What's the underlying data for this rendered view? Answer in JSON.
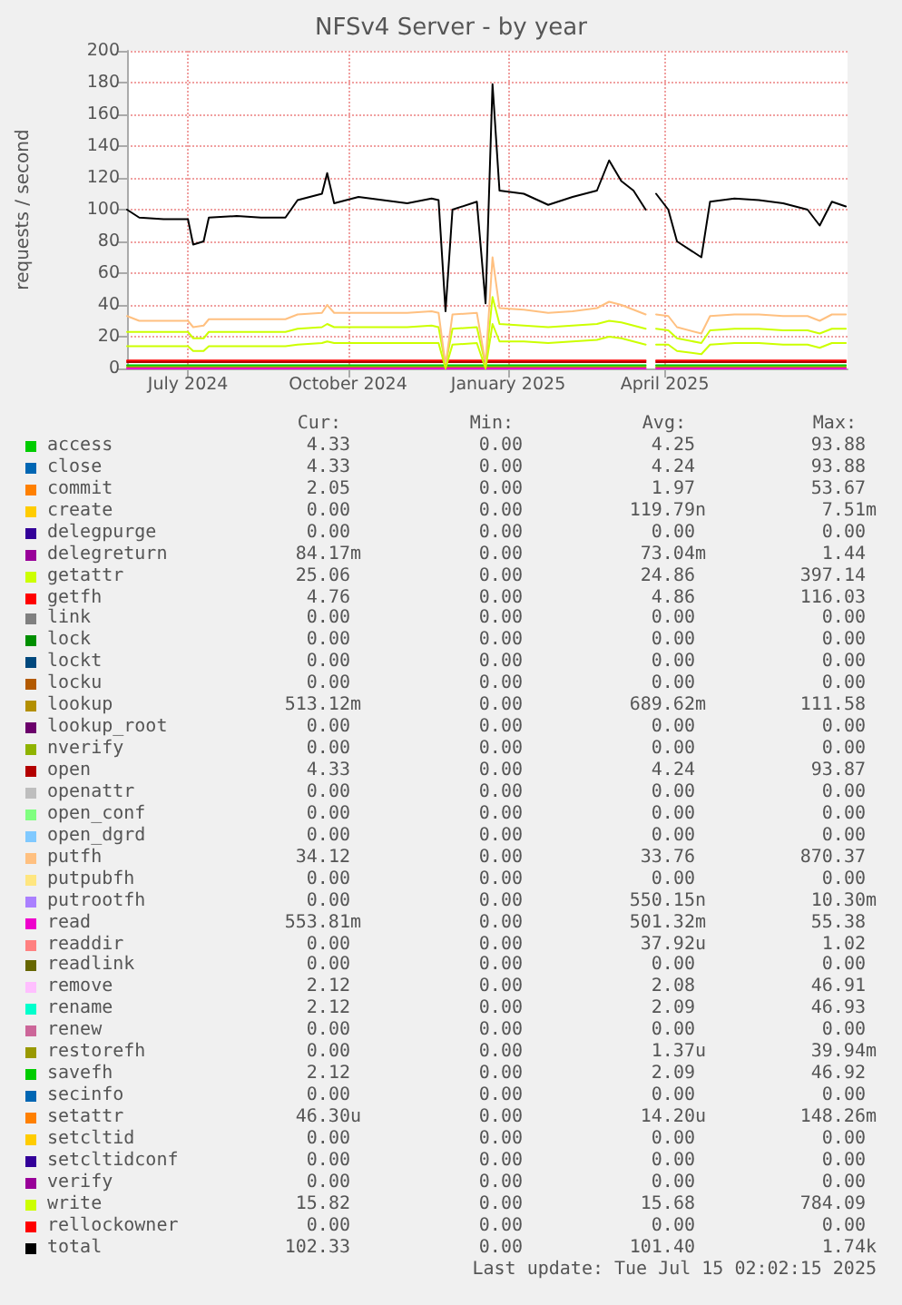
{
  "chart_data": {
    "type": "line",
    "title": "NFSv4 Server - by year",
    "ylabel": "requests / second",
    "x": [
      "2024-05-27",
      "2024-06-03",
      "2024-06-17",
      "2024-07-01",
      "2024-07-04",
      "2024-07-10",
      "2024-07-13",
      "2024-07-29",
      "2024-08-12",
      "2024-08-26",
      "2024-09-02",
      "2024-09-16",
      "2024-09-19",
      "2024-09-23",
      "2024-10-07",
      "2024-10-21",
      "2024-11-04",
      "2024-11-18",
      "2024-11-22",
      "2024-11-26",
      "2024-11-30",
      "2024-12-14",
      "2024-12-19",
      "2024-12-23",
      "2024-12-27",
      "2025-01-10",
      "2025-01-24",
      "2025-02-07",
      "2025-02-21",
      "2025-02-28",
      "2025-03-07",
      "2025-03-14",
      "2025-03-21",
      "2025-03-24",
      "2025-03-27",
      "2025-04-03",
      "2025-04-08",
      "2025-04-22",
      "2025-04-27",
      "2025-05-11",
      "2025-05-25",
      "2025-06-08",
      "2025-06-22",
      "2025-06-29",
      "2025-07-06",
      "2025-07-14"
    ],
    "series": [
      {
        "name": "access",
        "color": "#00cc00",
        "values": [
          null,
          null,
          null,
          null,
          null,
          null,
          null,
          null,
          null,
          null,
          null,
          null,
          null,
          null,
          null,
          null,
          null,
          null,
          null,
          null,
          null,
          null,
          null,
          null,
          null,
          null,
          null,
          null,
          null,
          null,
          null,
          null,
          null,
          null,
          null,
          null,
          null,
          null,
          null,
          null,
          null,
          null,
          null,
          null,
          null,
          null
        ]
      },
      {
        "name": "close",
        "color": "#0066b3",
        "values": [
          null,
          null,
          null,
          null,
          null,
          null,
          null,
          null,
          null,
          null,
          null,
          null,
          null,
          null,
          null,
          null,
          null,
          null,
          null,
          null,
          null,
          null,
          null,
          null,
          null,
          null,
          null,
          null,
          null,
          null,
          null,
          null,
          null,
          null,
          null,
          null,
          null,
          null,
          null,
          null,
          null,
          null,
          null,
          null,
          null,
          null
        ]
      },
      {
        "name": "commit",
        "color": "#ff8000",
        "values": [
          null,
          null,
          null,
          null,
          null,
          null,
          null,
          null,
          null,
          null,
          null,
          null,
          null,
          null,
          null,
          null,
          null,
          null,
          null,
          null,
          null,
          null,
          null,
          null,
          null,
          null,
          null,
          null,
          null,
          null,
          null,
          null,
          null,
          null,
          null,
          null,
          null,
          null,
          null,
          null,
          null,
          null,
          null,
          null,
          null,
          null
        ]
      },
      {
        "name": "create",
        "color": "#ffcc00",
        "values": [
          null,
          null,
          null,
          null,
          null,
          null,
          null,
          null,
          null,
          null,
          null,
          null,
          null,
          null,
          null,
          null,
          null,
          null,
          null,
          null,
          null,
          null,
          null,
          null,
          null,
          null,
          null,
          null,
          null,
          null,
          null,
          null,
          null,
          null,
          null,
          null,
          null,
          null,
          null,
          null,
          null,
          null,
          null,
          null,
          null,
          null
        ]
      },
      {
        "name": "delegpurge",
        "color": "#330099",
        "values": [
          null,
          null,
          null,
          null,
          null,
          null,
          null,
          null,
          null,
          null,
          null,
          null,
          null,
          null,
          null,
          null,
          null,
          null,
          null,
          null,
          null,
          null,
          null,
          null,
          null,
          null,
          null,
          null,
          null,
          null,
          null,
          null,
          null,
          null,
          null,
          null,
          null,
          null,
          null,
          null,
          null,
          null,
          null,
          null,
          null,
          null
        ]
      },
      {
        "name": "delegreturn",
        "color": "#990099",
        "values": [
          null,
          null,
          null,
          null,
          null,
          null,
          null,
          null,
          null,
          null,
          null,
          null,
          null,
          null,
          null,
          null,
          null,
          null,
          null,
          null,
          null,
          null,
          null,
          null,
          null,
          null,
          null,
          null,
          null,
          null,
          null,
          null,
          null,
          null,
          null,
          null,
          null,
          null,
          null,
          null,
          null,
          null,
          null,
          null,
          null,
          null
        ]
      },
      {
        "name": "getattr",
        "color": "#ccff00",
        "values": [
          23,
          23,
          23,
          23,
          19,
          19,
          23,
          23,
          23,
          23,
          25,
          26,
          28,
          26,
          26,
          26,
          26,
          27,
          26,
          2,
          25,
          26,
          2,
          45,
          28,
          27,
          26,
          27,
          28,
          30,
          29,
          27,
          25,
          null,
          25,
          24,
          19,
          16,
          24,
          25,
          25,
          24,
          24,
          22,
          25,
          25
        ]
      },
      {
        "name": "getfh",
        "color": "#ff0000",
        "x": [
          "2024-05-27",
          "2025-03-21",
          "2025-03-24",
          "2025-03-27",
          "2025-07-14"
        ],
        "values": [
          5,
          5,
          null,
          5,
          5
        ]
      },
      {
        "name": "link",
        "color": "#808080",
        "values": [
          null,
          null,
          null,
          null,
          null,
          null,
          null,
          null,
          null,
          null,
          null,
          null,
          null,
          null,
          null,
          null,
          null,
          null,
          null,
          null,
          null,
          null,
          null,
          null,
          null,
          null,
          null,
          null,
          null,
          null,
          null,
          null,
          null,
          null,
          null,
          null,
          null,
          null,
          null,
          null,
          null,
          null,
          null,
          null,
          null,
          null
        ]
      },
      {
        "name": "lock",
        "color": "#008f00",
        "values": [
          null,
          null,
          null,
          null,
          null,
          null,
          null,
          null,
          null,
          null,
          null,
          null,
          null,
          null,
          null,
          null,
          null,
          null,
          null,
          null,
          null,
          null,
          null,
          null,
          null,
          null,
          null,
          null,
          null,
          null,
          null,
          null,
          null,
          null,
          null,
          null,
          null,
          null,
          null,
          null,
          null,
          null,
          null,
          null,
          null,
          null
        ]
      },
      {
        "name": "lockt",
        "color": "#00487d",
        "values": [
          null,
          null,
          null,
          null,
          null,
          null,
          null,
          null,
          null,
          null,
          null,
          null,
          null,
          null,
          null,
          null,
          null,
          null,
          null,
          null,
          null,
          null,
          null,
          null,
          null,
          null,
          null,
          null,
          null,
          null,
          null,
          null,
          null,
          null,
          null,
          null,
          null,
          null,
          null,
          null,
          null,
          null,
          null,
          null,
          null,
          null
        ]
      },
      {
        "name": "locku",
        "color": "#b35a00",
        "values": [
          null,
          null,
          null,
          null,
          null,
          null,
          null,
          null,
          null,
          null,
          null,
          null,
          null,
          null,
          null,
          null,
          null,
          null,
          null,
          null,
          null,
          null,
          null,
          null,
          null,
          null,
          null,
          null,
          null,
          null,
          null,
          null,
          null,
          null,
          null,
          null,
          null,
          null,
          null,
          null,
          null,
          null,
          null,
          null,
          null,
          null
        ]
      },
      {
        "name": "lookup",
        "color": "#b38f00",
        "x": [
          "2024-05-27",
          "2025-03-21",
          "2025-03-24",
          "2025-03-27",
          "2025-07-14"
        ],
        "values": [
          1,
          1,
          null,
          1,
          1
        ]
      },
      {
        "name": "lookup_root",
        "color": "#6b006b",
        "values": [
          null,
          null,
          null,
          null,
          null,
          null,
          null,
          null,
          null,
          null,
          null,
          null,
          null,
          null,
          null,
          null,
          null,
          null,
          null,
          null,
          null,
          null,
          null,
          null,
          null,
          null,
          null,
          null,
          null,
          null,
          null,
          null,
          null,
          null,
          null,
          null,
          null,
          null,
          null,
          null,
          null,
          null,
          null,
          null,
          null,
          null
        ]
      },
      {
        "name": "nverify",
        "color": "#8fb300",
        "values": [
          null,
          null,
          null,
          null,
          null,
          null,
          null,
          null,
          null,
          null,
          null,
          null,
          null,
          null,
          null,
          null,
          null,
          null,
          null,
          null,
          null,
          null,
          null,
          null,
          null,
          null,
          null,
          null,
          null,
          null,
          null,
          null,
          null,
          null,
          null,
          null,
          null,
          null,
          null,
          null,
          null,
          null,
          null,
          null,
          null,
          null
        ]
      },
      {
        "name": "open",
        "color": "#b30000",
        "x": [
          "2024-05-27",
          "2025-03-21",
          "2025-03-24",
          "2025-03-27",
          "2025-07-14"
        ],
        "values": [
          4,
          4,
          null,
          4,
          4
        ]
      },
      {
        "name": "openattr",
        "color": "#bebebe",
        "values": [
          null,
          null,
          null,
          null,
          null,
          null,
          null,
          null,
          null,
          null,
          null,
          null,
          null,
          null,
          null,
          null,
          null,
          null,
          null,
          null,
          null,
          null,
          null,
          null,
          null,
          null,
          null,
          null,
          null,
          null,
          null,
          null,
          null,
          null,
          null,
          null,
          null,
          null,
          null,
          null,
          null,
          null,
          null,
          null,
          null,
          null
        ]
      },
      {
        "name": "open_conf",
        "color": "#80ff80",
        "values": [
          null,
          null,
          null,
          null,
          null,
          null,
          null,
          null,
          null,
          null,
          null,
          null,
          null,
          null,
          null,
          null,
          null,
          null,
          null,
          null,
          null,
          null,
          null,
          null,
          null,
          null,
          null,
          null,
          null,
          null,
          null,
          null,
          null,
          null,
          null,
          null,
          null,
          null,
          null,
          null,
          null,
          null,
          null,
          null,
          null,
          null
        ]
      },
      {
        "name": "open_dgrd",
        "color": "#80c9ff",
        "values": [
          null,
          null,
          null,
          null,
          null,
          null,
          null,
          null,
          null,
          null,
          null,
          null,
          null,
          null,
          null,
          null,
          null,
          null,
          null,
          null,
          null,
          null,
          null,
          null,
          null,
          null,
          null,
          null,
          null,
          null,
          null,
          null,
          null,
          null,
          null,
          null,
          null,
          null,
          null,
          null,
          null,
          null,
          null,
          null,
          null,
          null
        ]
      },
      {
        "name": "putfh",
        "color": "#ffc080",
        "values": [
          33,
          30,
          30,
          30,
          26,
          27,
          31,
          31,
          31,
          31,
          34,
          35,
          40,
          35,
          35,
          35,
          35,
          36,
          35,
          2,
          34,
          35,
          3,
          70,
          38,
          37,
          35,
          36,
          38,
          42,
          40,
          37,
          34,
          null,
          34,
          33,
          26,
          22,
          33,
          34,
          34,
          33,
          33,
          30,
          34,
          34
        ]
      },
      {
        "name": "putpubfh",
        "color": "#ffe680",
        "values": [
          null,
          null,
          null,
          null,
          null,
          null,
          null,
          null,
          null,
          null,
          null,
          null,
          null,
          null,
          null,
          null,
          null,
          null,
          null,
          null,
          null,
          null,
          null,
          null,
          null,
          null,
          null,
          null,
          null,
          null,
          null,
          null,
          null,
          null,
          null,
          null,
          null,
          null,
          null,
          null,
          null,
          null,
          null,
          null,
          null,
          null
        ]
      },
      {
        "name": "putrootfh",
        "color": "#aa80ff",
        "values": [
          null,
          null,
          null,
          null,
          null,
          null,
          null,
          null,
          null,
          null,
          null,
          null,
          null,
          null,
          null,
          null,
          null,
          null,
          null,
          null,
          null,
          null,
          null,
          null,
          null,
          null,
          null,
          null,
          null,
          null,
          null,
          null,
          null,
          null,
          null,
          null,
          null,
          null,
          null,
          null,
          null,
          null,
          null,
          null,
          null,
          null
        ]
      },
      {
        "name": "read",
        "color": "#ee00cc",
        "x": [
          "2024-05-27",
          "2025-03-21",
          "2025-03-24",
          "2025-03-27",
          "2025-07-14"
        ],
        "values": [
          0,
          0,
          null,
          0,
          0
        ]
      },
      {
        "name": "readdir",
        "color": "#ff8080",
        "values": [
          null,
          null,
          null,
          null,
          null,
          null,
          null,
          null,
          null,
          null,
          null,
          null,
          null,
          null,
          null,
          null,
          null,
          null,
          null,
          null,
          null,
          null,
          null,
          null,
          null,
          null,
          null,
          null,
          null,
          null,
          null,
          null,
          null,
          null,
          null,
          null,
          null,
          null,
          null,
          null,
          null,
          null,
          null,
          null,
          null,
          null
        ]
      },
      {
        "name": "readlink",
        "color": "#666600",
        "values": [
          null,
          null,
          null,
          null,
          null,
          null,
          null,
          null,
          null,
          null,
          null,
          null,
          null,
          null,
          null,
          null,
          null,
          null,
          null,
          null,
          null,
          null,
          null,
          null,
          null,
          null,
          null,
          null,
          null,
          null,
          null,
          null,
          null,
          null,
          null,
          null,
          null,
          null,
          null,
          null,
          null,
          null,
          null,
          null,
          null,
          null
        ]
      },
      {
        "name": "remove",
        "color": "#ffbfff",
        "values": [
          null,
          null,
          null,
          null,
          null,
          null,
          null,
          null,
          null,
          null,
          null,
          null,
          null,
          null,
          null,
          null,
          null,
          null,
          null,
          null,
          null,
          null,
          null,
          null,
          null,
          null,
          null,
          null,
          null,
          null,
          null,
          null,
          null,
          null,
          null,
          null,
          null,
          null,
          null,
          null,
          null,
          null,
          null,
          null,
          null,
          null
        ]
      },
      {
        "name": "rename",
        "color": "#00ffcc",
        "values": [
          null,
          null,
          null,
          null,
          null,
          null,
          null,
          null,
          null,
          null,
          null,
          null,
          null,
          null,
          null,
          null,
          null,
          null,
          null,
          null,
          null,
          null,
          null,
          null,
          null,
          null,
          null,
          null,
          null,
          null,
          null,
          null,
          null,
          null,
          null,
          null,
          null,
          null,
          null,
          null,
          null,
          null,
          null,
          null,
          null,
          null
        ]
      },
      {
        "name": "renew",
        "color": "#cc6699",
        "values": [
          null,
          null,
          null,
          null,
          null,
          null,
          null,
          null,
          null,
          null,
          null,
          null,
          null,
          null,
          null,
          null,
          null,
          null,
          null,
          null,
          null,
          null,
          null,
          null,
          null,
          null,
          null,
          null,
          null,
          null,
          null,
          null,
          null,
          null,
          null,
          null,
          null,
          null,
          null,
          null,
          null,
          null,
          null,
          null,
          null,
          null
        ]
      },
      {
        "name": "restorefh",
        "color": "#999900",
        "values": [
          null,
          null,
          null,
          null,
          null,
          null,
          null,
          null,
          null,
          null,
          null,
          null,
          null,
          null,
          null,
          null,
          null,
          null,
          null,
          null,
          null,
          null,
          null,
          null,
          null,
          null,
          null,
          null,
          null,
          null,
          null,
          null,
          null,
          null,
          null,
          null,
          null,
          null,
          null,
          null,
          null,
          null,
          null,
          null,
          null,
          null
        ]
      },
      {
        "name": "savefh",
        "color": "#00cc00",
        "x": [
          "2024-05-27",
          "2025-03-21",
          "2025-03-24",
          "2025-03-27",
          "2025-07-14"
        ],
        "values": [
          2,
          2,
          null,
          2,
          2
        ]
      },
      {
        "name": "secinfo",
        "color": "#0066b3",
        "values": [
          null,
          null,
          null,
          null,
          null,
          null,
          null,
          null,
          null,
          null,
          null,
          null,
          null,
          null,
          null,
          null,
          null,
          null,
          null,
          null,
          null,
          null,
          null,
          null,
          null,
          null,
          null,
          null,
          null,
          null,
          null,
          null,
          null,
          null,
          null,
          null,
          null,
          null,
          null,
          null,
          null,
          null,
          null,
          null,
          null,
          null
        ]
      },
      {
        "name": "setattr",
        "color": "#ff8000",
        "values": [
          null,
          null,
          null,
          null,
          null,
          null,
          null,
          null,
          null,
          null,
          null,
          null,
          null,
          null,
          null,
          null,
          null,
          null,
          null,
          null,
          null,
          null,
          null,
          null,
          null,
          null,
          null,
          null,
          null,
          null,
          null,
          null,
          null,
          null,
          null,
          null,
          null,
          null,
          null,
          null,
          null,
          null,
          null,
          null,
          null,
          null
        ]
      },
      {
        "name": "setcltid",
        "color": "#ffcc00",
        "values": [
          null,
          null,
          null,
          null,
          null,
          null,
          null,
          null,
          null,
          null,
          null,
          null,
          null,
          null,
          null,
          null,
          null,
          null,
          null,
          null,
          null,
          null,
          null,
          null,
          null,
          null,
          null,
          null,
          null,
          null,
          null,
          null,
          null,
          null,
          null,
          null,
          null,
          null,
          null,
          null,
          null,
          null,
          null,
          null,
          null,
          null
        ]
      },
      {
        "name": "setcltidconf",
        "color": "#330099",
        "values": [
          null,
          null,
          null,
          null,
          null,
          null,
          null,
          null,
          null,
          null,
          null,
          null,
          null,
          null,
          null,
          null,
          null,
          null,
          null,
          null,
          null,
          null,
          null,
          null,
          null,
          null,
          null,
          null,
          null,
          null,
          null,
          null,
          null,
          null,
          null,
          null,
          null,
          null,
          null,
          null,
          null,
          null,
          null,
          null,
          null,
          null
        ]
      },
      {
        "name": "verify",
        "color": "#990099",
        "values": [
          null,
          null,
          null,
          null,
          null,
          null,
          null,
          null,
          null,
          null,
          null,
          null,
          null,
          null,
          null,
          null,
          null,
          null,
          null,
          null,
          null,
          null,
          null,
          null,
          null,
          null,
          null,
          null,
          null,
          null,
          null,
          null,
          null,
          null,
          null,
          null,
          null,
          null,
          null,
          null,
          null,
          null,
          null,
          null,
          null,
          null
        ]
      },
      {
        "name": "write",
        "color": "#ccff00",
        "values": [
          14,
          14,
          14,
          14,
          11,
          11,
          14,
          14,
          14,
          14,
          15,
          16,
          17,
          16,
          16,
          16,
          16,
          16,
          16,
          0,
          15,
          16,
          0,
          28,
          17,
          17,
          16,
          17,
          18,
          20,
          19,
          17,
          15,
          null,
          15,
          15,
          11,
          9,
          15,
          16,
          16,
          15,
          15,
          13,
          16,
          16
        ]
      },
      {
        "name": "rellockowner",
        "color": "#ff0000",
        "values": [
          null,
          null,
          null,
          null,
          null,
          null,
          null,
          null,
          null,
          null,
          null,
          null,
          null,
          null,
          null,
          null,
          null,
          null,
          null,
          null,
          null,
          null,
          null,
          null,
          null,
          null,
          null,
          null,
          null,
          null,
          null,
          null,
          null,
          null,
          null,
          null,
          null,
          null,
          null,
          null,
          null,
          null,
          null,
          null,
          null,
          null
        ]
      },
      {
        "name": "total",
        "color": "#000000",
        "values": [
          100,
          95,
          94,
          94,
          78,
          80,
          95,
          96,
          95,
          95,
          106,
          110,
          123,
          104,
          108,
          106,
          104,
          107,
          106,
          36,
          100,
          105,
          41,
          179,
          112,
          110,
          103,
          108,
          112,
          131,
          118,
          112,
          100,
          null,
          110,
          100,
          80,
          70,
          105,
          107,
          106,
          104,
          100,
          90,
          105,
          102
        ]
      }
    ],
    "xlim": [
      "2024-05-27",
      "2025-07-15"
    ],
    "xticks": [
      {
        "value": "2024-07-01",
        "label": "July 2024"
      },
      {
        "value": "2024-10-01",
        "label": "October 2024"
      },
      {
        "value": "2025-01-01",
        "label": "January 2025"
      },
      {
        "value": "2025-04-01",
        "label": "April 2025"
      }
    ],
    "ylim": [
      0,
      200
    ],
    "yticks": [
      0,
      20,
      40,
      60,
      80,
      100,
      120,
      140,
      160,
      180,
      200
    ],
    "grid": true,
    "legend": "bottom",
    "marker": "none",
    "line_style": "solid",
    "annotations": [
      "Cur:",
      "Min:",
      "Avg:",
      "Max:",
      "4.33",
      "0.00",
      "4.25",
      "93.88",
      "4.33",
      "0.00",
      "4.24",
      "93.88",
      "2.05",
      "0.00",
      "1.97",
      "53.67",
      "0.00",
      "0.00",
      "119.79n",
      "7.51m",
      "0.00",
      "0.00",
      "0.00",
      "0.00",
      "84.17m",
      "0.00",
      "73.04m",
      "1.44",
      "25.06",
      "0.00",
      "24.86",
      "397.14",
      "4.76",
      "0.00",
      "4.86",
      "116.03",
      "0.00",
      "0.00",
      "0.00",
      "0.00",
      "0.00",
      "0.00",
      "0.00",
      "0.00",
      "0.00",
      "0.00",
      "0.00",
      "0.00",
      "0.00",
      "0.00",
      "0.00",
      "0.00",
      "513.12m",
      "0.00",
      "689.62m",
      "111.58",
      "0.00",
      "0.00",
      "0.00",
      "0.00",
      "0.00",
      "0.00",
      "0.00",
      "0.00",
      "4.33",
      "0.00",
      "4.24",
      "93.87",
      "0.00",
      "0.00",
      "0.00",
      "0.00",
      "0.00",
      "0.00",
      "0.00",
      "0.00",
      "0.00",
      "0.00",
      "0.00",
      "0.00",
      "34.12",
      "0.00",
      "33.76",
      "870.37",
      "0.00",
      "0.00",
      "0.00",
      "0.00",
      "0.00",
      "0.00",
      "550.15n",
      "10.30m",
      "553.81m",
      "0.00",
      "501.32m",
      "55.38",
      "0.00",
      "0.00",
      "37.92u",
      "1.02",
      "0.00",
      "0.00",
      "0.00",
      "0.00",
      "2.12",
      "0.00",
      "2.08",
      "46.91",
      "2.12",
      "0.00",
      "2.09",
      "46.93",
      "0.00",
      "0.00",
      "0.00",
      "0.00",
      "0.00",
      "0.00",
      "1.37u",
      "39.94m",
      "2.12",
      "0.00",
      "2.09",
      "46.92",
      "0.00",
      "0.00",
      "0.00",
      "0.00",
      "46.30u",
      "0.00",
      "14.20u",
      "148.26m",
      "0.00",
      "0.00",
      "0.00",
      "0.00",
      "0.00",
      "0.00",
      "0.00",
      "0.00",
      "0.00",
      "0.00",
      "0.00",
      "0.00",
      "15.82",
      "0.00",
      "15.68",
      "784.09",
      "0.00",
      "0.00",
      "0.00",
      "0.00",
      "102.33",
      "0.00",
      "101.40",
      "1.74k",
      "Last update: Tue Jul 15 02:02:15 2025"
    ]
  }
}
